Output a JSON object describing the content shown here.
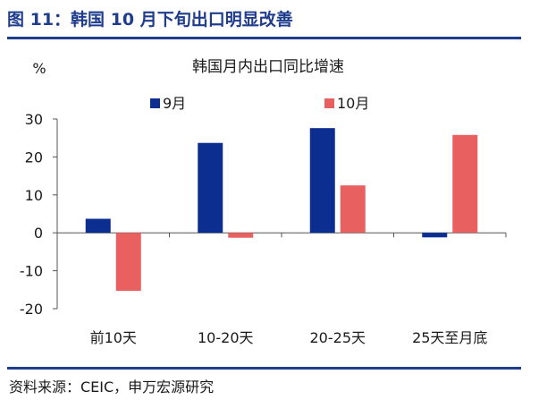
{
  "figure": {
    "title": "图 11：韩国 10 月下旬出口明显改善",
    "source": "资料来源：CEIC，申万宏源研究"
  },
  "chart_data": {
    "type": "bar",
    "title": "韩国月内出口同比增速",
    "ylabel": "%",
    "xlabel": "",
    "ylim": [
      -20,
      30
    ],
    "yticks": [
      30,
      20,
      10,
      0,
      -10,
      -20
    ],
    "categories": [
      "前10天",
      "10-20天",
      "20-25天",
      "25天至月底"
    ],
    "series": [
      {
        "name": "9月",
        "color": "#0d2e91",
        "values": [
          3.7,
          23.7,
          27.6,
          -1.2
        ]
      },
      {
        "name": "10月",
        "color": "#e8605f",
        "values": [
          -15.3,
          -1.3,
          12.5,
          25.8
        ]
      }
    ],
    "legend_position": "top",
    "grid": false
  }
}
